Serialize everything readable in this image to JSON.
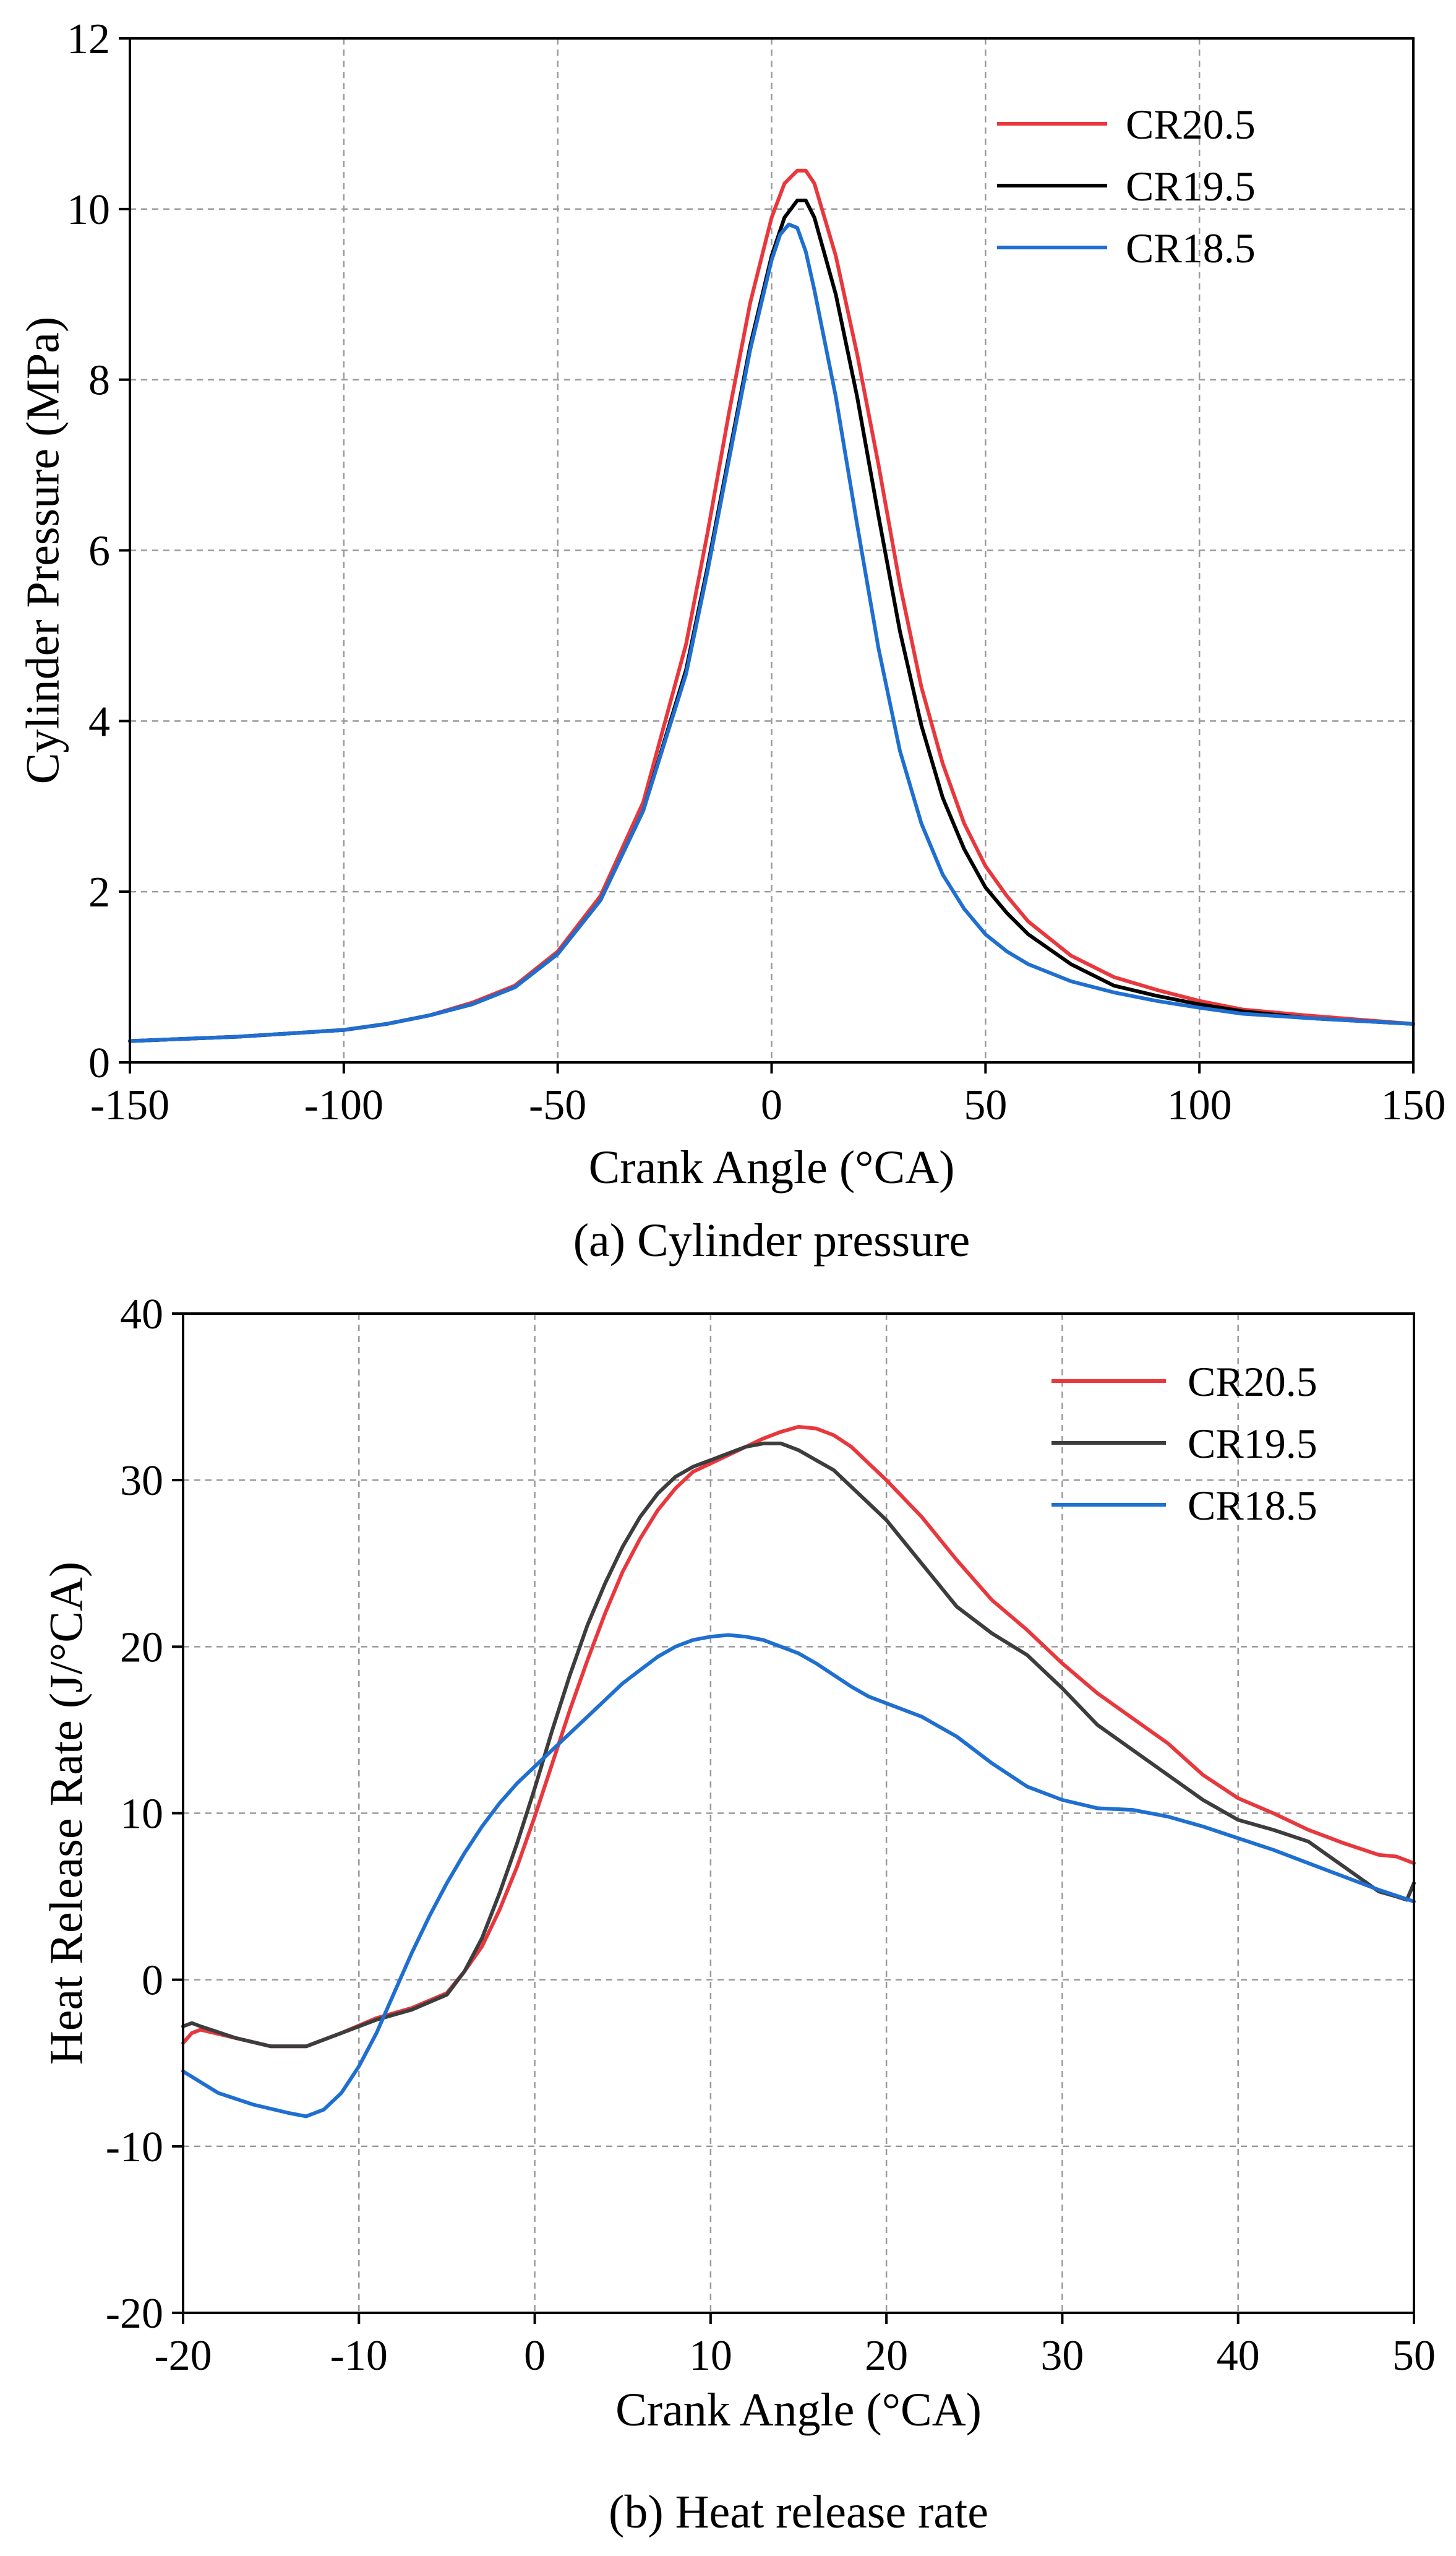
{
  "chart_data": [
    {
      "type": "line",
      "caption": "(a) Cylinder pressure",
      "xlabel": "Crank Angle (°CA)",
      "ylabel": "Cylinder Pressure (MPa)",
      "xlim": [
        -150,
        150
      ],
      "ylim": [
        0,
        12
      ],
      "xticks": [
        -150,
        -100,
        -50,
        0,
        50,
        100,
        150
      ],
      "yticks": [
        0,
        2,
        4,
        6,
        8,
        10,
        12
      ],
      "grid": true,
      "legend": "top-right",
      "series": [
        {
          "name": "CR20.5",
          "color": "#e8383d",
          "x": [
            -150,
            -125,
            -100,
            -90,
            -80,
            -70,
            -60,
            -50,
            -40,
            -30,
            -20,
            -15,
            -10,
            -5,
            0,
            3,
            6,
            8,
            10,
            15,
            20,
            25,
            30,
            35,
            40,
            45,
            50,
            55,
            60,
            70,
            80,
            90,
            100,
            110,
            125,
            150
          ],
          "y": [
            0.25,
            0.3,
            0.38,
            0.45,
            0.55,
            0.7,
            0.9,
            1.3,
            1.95,
            3.05,
            4.9,
            6.2,
            7.6,
            8.9,
            9.9,
            10.3,
            10.45,
            10.45,
            10.3,
            9.45,
            8.3,
            7.0,
            5.6,
            4.4,
            3.5,
            2.8,
            2.3,
            1.95,
            1.65,
            1.25,
            1.0,
            0.85,
            0.72,
            0.62,
            0.55,
            0.45
          ]
        },
        {
          "name": "CR19.5",
          "color": "#000000",
          "x": [
            -150,
            -125,
            -100,
            -90,
            -80,
            -70,
            -60,
            -50,
            -40,
            -30,
            -20,
            -15,
            -10,
            -5,
            0,
            3,
            6,
            8,
            10,
            15,
            20,
            25,
            30,
            35,
            40,
            45,
            50,
            55,
            60,
            70,
            80,
            90,
            100,
            110,
            125,
            150
          ],
          "y": [
            0.25,
            0.3,
            0.38,
            0.45,
            0.55,
            0.68,
            0.88,
            1.27,
            1.9,
            2.95,
            4.6,
            5.8,
            7.1,
            8.4,
            9.45,
            9.9,
            10.1,
            10.1,
            9.9,
            9.0,
            7.8,
            6.4,
            5.05,
            3.95,
            3.1,
            2.5,
            2.05,
            1.75,
            1.5,
            1.15,
            0.9,
            0.78,
            0.68,
            0.6,
            0.52,
            0.45
          ]
        },
        {
          "name": "CR18.5",
          "color": "#1f6fd1",
          "x": [
            -150,
            -125,
            -100,
            -90,
            -80,
            -70,
            -60,
            -50,
            -40,
            -30,
            -20,
            -15,
            -10,
            -5,
            0,
            2,
            4,
            6,
            8,
            10,
            15,
            20,
            25,
            30,
            35,
            40,
            45,
            50,
            55,
            60,
            70,
            80,
            90,
            100,
            110,
            125,
            150
          ],
          "y": [
            0.25,
            0.3,
            0.38,
            0.45,
            0.55,
            0.68,
            0.88,
            1.27,
            1.9,
            2.95,
            4.55,
            5.75,
            7.05,
            8.35,
            9.4,
            9.7,
            9.82,
            9.78,
            9.5,
            9.05,
            7.8,
            6.3,
            4.85,
            3.65,
            2.8,
            2.2,
            1.8,
            1.5,
            1.3,
            1.15,
            0.95,
            0.82,
            0.72,
            0.64,
            0.57,
            0.52,
            0.45
          ]
        }
      ]
    },
    {
      "type": "line",
      "caption": "(b) Heat release rate",
      "xlabel": "Crank Angle (°CA)",
      "ylabel": "Heat Release Rate (J/°CA)",
      "xlim": [
        -20,
        50
      ],
      "ylim": [
        -20,
        40
      ],
      "xticks": [
        -20,
        -10,
        0,
        10,
        20,
        30,
        40,
        50
      ],
      "yticks": [
        -20,
        -10,
        0,
        10,
        20,
        30,
        40
      ],
      "grid": true,
      "legend": "top-right",
      "series": [
        {
          "name": "CR20.5",
          "color": "#e8383d",
          "x": [
            -20,
            -19.5,
            -19,
            -17,
            -15,
            -13,
            -11,
            -9,
            -7,
            -5,
            -4,
            -3,
            -2,
            -1,
            0,
            1,
            2,
            3,
            4,
            5,
            6,
            7,
            8,
            9,
            10,
            11,
            12,
            13,
            14,
            15,
            16,
            17,
            18,
            19,
            20,
            22,
            24,
            26,
            28,
            30,
            32,
            34,
            36,
            38,
            40,
            42,
            44,
            46,
            48,
            49,
            50
          ],
          "y": [
            -3.8,
            -3.2,
            -3.0,
            -3.5,
            -4.0,
            -4.0,
            -3.2,
            -2.3,
            -1.7,
            -0.8,
            0.5,
            2.0,
            4.2,
            6.8,
            9.8,
            13.0,
            16.2,
            19.2,
            22.0,
            24.5,
            26.5,
            28.2,
            29.5,
            30.5,
            31.0,
            31.5,
            32.0,
            32.5,
            32.9,
            33.2,
            33.1,
            32.7,
            32.0,
            31.0,
            30.0,
            27.8,
            25.2,
            22.8,
            21.0,
            19.0,
            17.2,
            15.7,
            14.2,
            12.3,
            10.9,
            10.0,
            9.0,
            8.2,
            7.5,
            7.4,
            7.0
          ]
        },
        {
          "name": "CR19.5",
          "color": "#3d3d3d",
          "x": [
            -20,
            -19.5,
            -19,
            -17,
            -15,
            -13,
            -11,
            -9,
            -7,
            -5,
            -4,
            -3,
            -2,
            -1,
            0,
            1,
            2,
            3,
            4,
            5,
            6,
            7,
            8,
            9,
            10,
            11,
            12,
            13,
            14,
            15,
            16,
            17,
            18,
            19,
            20,
            22,
            24,
            26,
            28,
            30,
            32,
            34,
            36,
            38,
            40,
            42,
            44,
            46,
            48,
            49,
            49.6,
            50
          ],
          "y": [
            -2.8,
            -2.6,
            -2.8,
            -3.5,
            -4.0,
            -4.0,
            -3.2,
            -2.4,
            -1.8,
            -0.9,
            0.5,
            2.5,
            5.2,
            8.2,
            11.5,
            15.0,
            18.3,
            21.3,
            23.8,
            26.0,
            27.8,
            29.2,
            30.2,
            30.8,
            31.2,
            31.6,
            32.0,
            32.2,
            32.2,
            31.8,
            31.2,
            30.6,
            29.6,
            28.6,
            27.6,
            25.0,
            22.4,
            20.8,
            19.5,
            17.5,
            15.3,
            13.8,
            12.3,
            10.8,
            9.6,
            9.0,
            8.3,
            6.8,
            5.3,
            5.0,
            4.8,
            5.8
          ]
        },
        {
          "name": "CR18.5",
          "color": "#1f6fd1",
          "x": [
            -20,
            -18,
            -16,
            -14,
            -13,
            -12,
            -11,
            -10,
            -9,
            -8,
            -7,
            -6,
            -5,
            -4,
            -3,
            -2,
            -1,
            0,
            1,
            2,
            3,
            4,
            5,
            6,
            7,
            8,
            9,
            10,
            11,
            12,
            13,
            14,
            15,
            16,
            17,
            18,
            19,
            20,
            22,
            24,
            26,
            28,
            30,
            32,
            34,
            36,
            38,
            40,
            42,
            44,
            46,
            48,
            50
          ],
          "y": [
            -5.5,
            -6.8,
            -7.5,
            -8.0,
            -8.2,
            -7.8,
            -6.8,
            -5.2,
            -3.2,
            -0.8,
            1.6,
            3.8,
            5.8,
            7.6,
            9.2,
            10.6,
            11.8,
            12.8,
            13.8,
            14.8,
            15.8,
            16.8,
            17.8,
            18.6,
            19.4,
            20.0,
            20.4,
            20.6,
            20.7,
            20.6,
            20.4,
            20.0,
            19.6,
            19.0,
            18.3,
            17.6,
            17.0,
            16.6,
            15.8,
            14.6,
            13.0,
            11.6,
            10.8,
            10.3,
            10.2,
            9.8,
            9.2,
            8.5,
            7.8,
            7.0,
            6.2,
            5.4,
            4.7
          ]
        }
      ]
    }
  ]
}
